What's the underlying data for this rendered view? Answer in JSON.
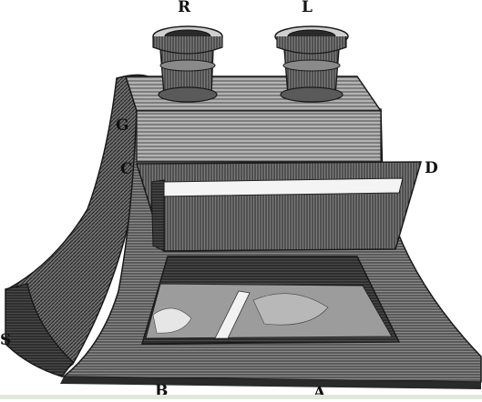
{
  "labels": {
    "r": "R",
    "l": "L",
    "g": "G",
    "c": "C",
    "d": "D",
    "s": "S",
    "b": "B",
    "a": "A"
  },
  "colors": {
    "ink": "#1a1a1a",
    "wood_dark": "#3a3a3a",
    "wood_mid": "#6a6a6a",
    "wood_light": "#9a9a9a",
    "paper": "#ffffff",
    "bottom_strip": "#dfe9d9"
  }
}
